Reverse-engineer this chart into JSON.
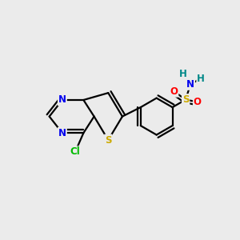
{
  "background_color": "#ebebeb",
  "atom_colors": {
    "C": "#000000",
    "N": "#0000ee",
    "S": "#ccaa00",
    "O": "#ff0000",
    "Cl": "#00bb00",
    "H": "#008888"
  },
  "figsize": [
    3.0,
    3.0
  ],
  "dpi": 100
}
